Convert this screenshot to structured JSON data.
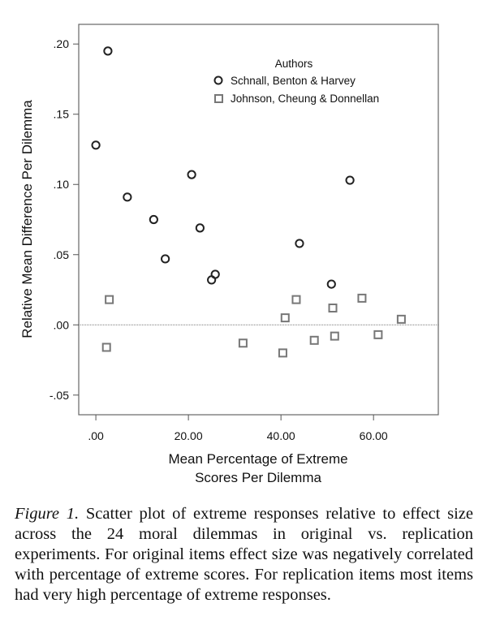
{
  "chart_data": {
    "type": "scatter",
    "xlabel": [
      "Mean Percentage of Extreme",
      "Scores Per Dilemma"
    ],
    "ylabel": "Relative Mean Difference Per Dilemma",
    "xlim": [
      -3.7,
      74
    ],
    "ylim": [
      -0.064,
      0.214
    ],
    "xticks": [
      {
        "v": 0,
        "label": ".00"
      },
      {
        "v": 20,
        "label": "20.00"
      },
      {
        "v": 40,
        "label": "40.00"
      },
      {
        "v": 60,
        "label": "60.00"
      }
    ],
    "yticks": [
      {
        "v": -0.05,
        "label": "-.05"
      },
      {
        "v": 0,
        "label": ".00"
      },
      {
        "v": 0.05,
        "label": ".05"
      },
      {
        "v": 0.1,
        "label": ".10"
      },
      {
        "v": 0.15,
        "label": ".15"
      },
      {
        "v": 0.2,
        "label": ".20"
      }
    ],
    "reference_line_y": 0,
    "legend": {
      "title": "Authors",
      "placement": "top-right"
    },
    "series": [
      {
        "name": "Schnall, Benton & Harvey",
        "marker": "circle",
        "color": "#222222",
        "points": [
          [
            2.6,
            0.195
          ],
          [
            0,
            0.128
          ],
          [
            20.7,
            0.107
          ],
          [
            6.8,
            0.091
          ],
          [
            12.5,
            0.075
          ],
          [
            22.5,
            0.069
          ],
          [
            15,
            0.047
          ],
          [
            54.9,
            0.103
          ],
          [
            44,
            0.058
          ],
          [
            25,
            0.032
          ],
          [
            25.8,
            0.036
          ],
          [
            50.9,
            0.029
          ]
        ]
      },
      {
        "name": "Johnson, Cheung & Donnellan",
        "marker": "square",
        "color": "#777777",
        "points": [
          [
            2.9,
            0.018
          ],
          [
            2.3,
            -0.016
          ],
          [
            31.8,
            -0.013
          ],
          [
            40.4,
            -0.02
          ],
          [
            40.9,
            0.005
          ],
          [
            43.3,
            0.018
          ],
          [
            47.2,
            -0.011
          ],
          [
            51.2,
            0.012
          ],
          [
            51.6,
            -0.008
          ],
          [
            57.5,
            0.019
          ],
          [
            61,
            -0.007
          ],
          [
            66,
            0.004
          ]
        ]
      }
    ]
  },
  "caption": {
    "label": "Figure 1.",
    "text": " Scatter plot of extreme responses relative to effect size across the 24 moral dilemmas in original vs. replication experiments. For original items effect size was negatively correlated with percentage of extreme scores. For replication items most items had very high percentage of extreme responses."
  }
}
